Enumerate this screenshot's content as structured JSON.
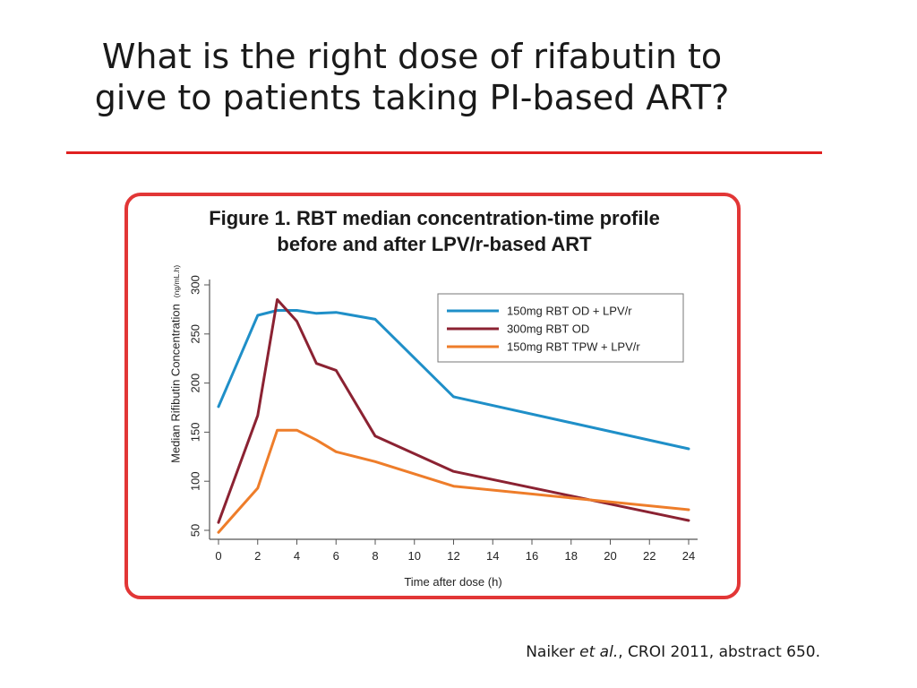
{
  "slide": {
    "title_line1": "What is the right dose of rifabutin to",
    "title_line2": "give to patients taking PI-based ART?",
    "citation_author": "Naiker ",
    "citation_etal": "et al.",
    "citation_rest": ", CROI 2011, abstract 650."
  },
  "chart_data": {
    "type": "line",
    "title_line1": "Figure 1. RBT median concentration-time profile",
    "title_line2": "before and after LPV/r-based ART",
    "xlabel": "Time after dose (h)",
    "ylabel": "Median Rifibutin Concentration",
    "ylabel_unit": "(ng/mL.h)",
    "xlim": [
      0,
      24
    ],
    "ylim": [
      50,
      300
    ],
    "xticks": [
      0,
      2,
      4,
      6,
      8,
      10,
      12,
      14,
      16,
      18,
      20,
      22,
      24
    ],
    "yticks": [
      50,
      100,
      150,
      200,
      250,
      300
    ],
    "grid": false,
    "legend_position": "top-right",
    "series": [
      {
        "name": "150mg RBT OD + LPV/r",
        "color": "#1f8fc8",
        "x": [
          0,
          2,
          3,
          4,
          5,
          6,
          8,
          12,
          24
        ],
        "y": [
          176,
          269,
          274,
          274,
          271,
          272,
          265,
          186,
          133
        ]
      },
      {
        "name": "300mg RBT OD",
        "color": "#8b2232",
        "x": [
          0,
          2,
          3,
          4,
          5,
          6,
          8,
          12,
          24
        ],
        "y": [
          58,
          167,
          285,
          263,
          220,
          213,
          146,
          110,
          60
        ]
      },
      {
        "name": "150mg RBT TPW + LPV/r",
        "color": "#ee7d2a",
        "x": [
          0,
          2,
          3,
          4,
          5,
          6,
          8,
          12,
          24
        ],
        "y": [
          48,
          93,
          152,
          152,
          142,
          130,
          120,
          95,
          71
        ]
      }
    ]
  }
}
